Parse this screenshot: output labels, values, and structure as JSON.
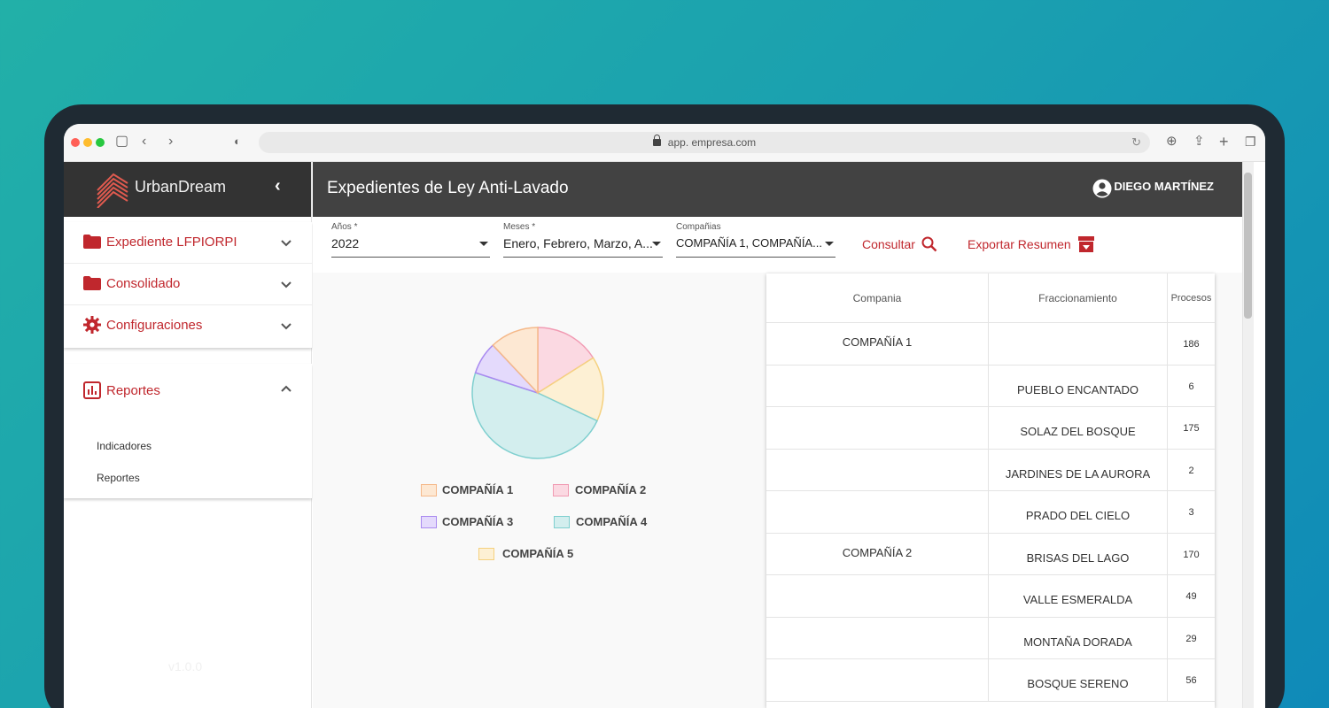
{
  "browser": {
    "url": "app. empresa.com"
  },
  "sidebar": {
    "brand": "UrbanDream",
    "menu": [
      {
        "label": "Expediente LFPIORPI",
        "icon": "folder-icon"
      },
      {
        "label": "Consolidado",
        "icon": "folder-icon"
      },
      {
        "label": "Configuraciones",
        "icon": "gear-icon"
      }
    ],
    "reports": {
      "label": "Reportes",
      "icon": "bar-chart-icon",
      "subitems": [
        "Indicadores",
        "Reportes"
      ]
    },
    "version": "v1.0.0"
  },
  "header": {
    "title": "Expedientes de Ley Anti-Lavado",
    "user": "DIEGO MARTÍNEZ"
  },
  "filters": {
    "years": {
      "label": "Años *",
      "value": "2022"
    },
    "months": {
      "label": "Meses *",
      "value": "Enero, Febrero, Marzo, A..."
    },
    "companies": {
      "label": "Compañias",
      "value": "COMPAÑÍA 1, COMPAÑÍA..."
    },
    "consult_label": "Consultar",
    "export_label": "Exportar Resumen"
  },
  "chart_data": {
    "type": "pie",
    "categories": [
      "COMPAÑÍA 1",
      "COMPAÑÍA 2",
      "COMPAÑÍA 3",
      "COMPAÑÍA 4",
      "COMPAÑÍA 5"
    ],
    "values": [
      12,
      16,
      8,
      48,
      16
    ],
    "colors": {
      "fill": [
        "#fde8d3",
        "#fbd9e2",
        "#e4dafc",
        "#d3eeee",
        "#fdf0d4"
      ],
      "stroke": [
        "#f5b98a",
        "#f19bb3",
        "#a98af0",
        "#7fcfcf",
        "#f5d17f"
      ]
    },
    "legend": "bottom"
  },
  "table": {
    "headers": [
      "Compania",
      "Fraccionamiento",
      "Procesos"
    ],
    "rows": [
      {
        "company": "COMPAÑÍA 1",
        "development": "",
        "processes": "186"
      },
      {
        "company": "",
        "development": "PUEBLO ENCANTADO",
        "processes": "6"
      },
      {
        "company": "",
        "development": "SOLAZ DEL BOSQUE",
        "processes": "175"
      },
      {
        "company": "",
        "development": "JARDINES DE LA AURORA",
        "processes": "2"
      },
      {
        "company": "",
        "development": "PRADO DEL CIELO",
        "processes": "3"
      },
      {
        "company": "COMPAÑÍA 2",
        "development": "BRISAS DEL LAGO",
        "processes": "170"
      },
      {
        "company": "",
        "development": "VALLE ESMERALDA",
        "processes": "49"
      },
      {
        "company": "",
        "development": "MONTAÑA DORADA",
        "processes": "29"
      },
      {
        "company": "",
        "development": "BOSQUE SERENO",
        "processes": "56"
      }
    ]
  },
  "colors": {
    "accent": "#c0272d",
    "header_dark": "#424242",
    "sidebar_dark": "#333333"
  }
}
